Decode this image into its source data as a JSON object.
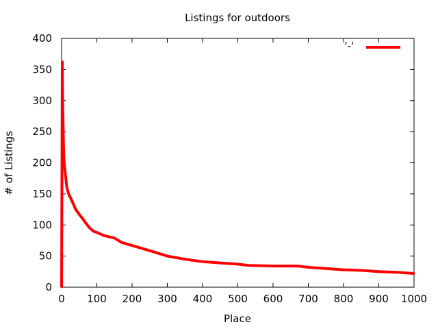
{
  "chart_data": {
    "type": "line",
    "title": "Listings for outdoors",
    "xlabel": "Place",
    "ylabel": "# of Listings",
    "xlim": [
      0,
      1000
    ],
    "ylim": [
      0,
      400
    ],
    "xticks": [
      0,
      100,
      200,
      300,
      400,
      500,
      600,
      700,
      800,
      900,
      1000
    ],
    "yticks": [
      0,
      50,
      100,
      150,
      200,
      250,
      300,
      350,
      400
    ],
    "grid": false,
    "legend": {
      "position": "top-right",
      "entries": [
        {
          "label": "'-'",
          "color": "#ff0000"
        }
      ]
    },
    "series": [
      {
        "color": "#ff0000",
        "x": [
          0,
          1,
          2,
          3,
          4,
          5,
          6,
          7,
          8,
          9,
          10,
          12,
          15,
          20,
          30,
          40,
          50,
          60,
          70,
          80,
          90,
          100,
          120,
          150,
          170,
          200,
          230,
          260,
          300,
          350,
          400,
          450,
          500,
          530,
          600,
          670,
          700,
          750,
          800,
          850,
          900,
          950,
          1000
        ],
        "values": [
          0,
          180,
          362,
          300,
          270,
          240,
          215,
          200,
          195,
          190,
          185,
          175,
          160,
          150,
          138,
          125,
          117,
          110,
          102,
          95,
          90,
          88,
          83,
          79,
          72,
          67,
          62,
          57,
          50,
          45,
          41,
          39,
          37,
          35,
          34,
          34,
          32,
          30,
          28,
          27,
          25,
          24,
          22
        ]
      }
    ]
  }
}
